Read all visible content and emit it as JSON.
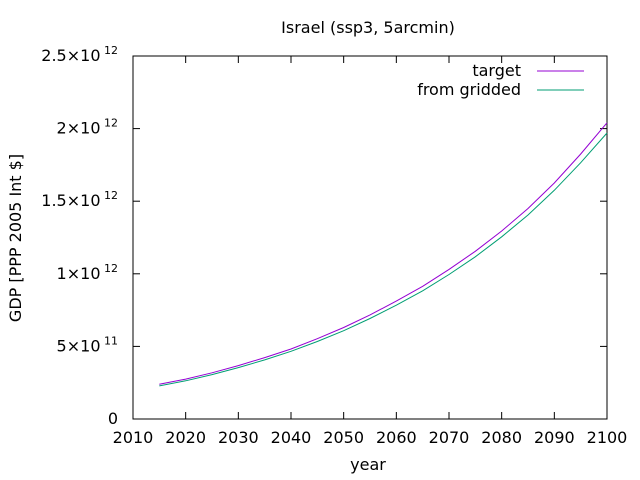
{
  "chart_data": {
    "type": "line",
    "title": "Israel (ssp3, 5arcmin)",
    "xlabel": "year",
    "ylabel": "GDP [PPP 2005 Int $]",
    "xlim": [
      2010,
      2100
    ],
    "ylim": [
      0,
      2500000000000
    ],
    "xticks": [
      2010,
      2020,
      2030,
      2040,
      2050,
      2060,
      2070,
      2080,
      2090,
      2100
    ],
    "yticks": [
      {
        "value": 0,
        "mantissa": "0",
        "exp": ""
      },
      {
        "value": 500000000000,
        "mantissa": "5×10",
        "exp": "11"
      },
      {
        "value": 1000000000000,
        "mantissa": "1×10",
        "exp": "12"
      },
      {
        "value": 1500000000000,
        "mantissa": "1.5×10",
        "exp": "12"
      },
      {
        "value": 2000000000000,
        "mantissa": "2×10",
        "exp": "12"
      },
      {
        "value": 2500000000000,
        "mantissa": "2.5×10",
        "exp": "12"
      }
    ],
    "grid": false,
    "legend_position": "top-right",
    "series": [
      {
        "name": "target",
        "color": "#9400d3",
        "x": [
          2015,
          2020,
          2025,
          2030,
          2035,
          2040,
          2045,
          2050,
          2055,
          2060,
          2065,
          2070,
          2075,
          2080,
          2085,
          2090,
          2095,
          2100
        ],
        "y": [
          240000000000,
          275000000000,
          318000000000,
          368000000000,
          423000000000,
          482000000000,
          553000000000,
          630000000000,
          717000000000,
          812000000000,
          914000000000,
          1030000000000,
          1155000000000,
          1295000000000,
          1450000000000,
          1625000000000,
          1825000000000,
          2040000000000
        ]
      },
      {
        "name": "from gridded",
        "color": "#009e73",
        "x": [
          2015,
          2020,
          2025,
          2030,
          2035,
          2040,
          2045,
          2050,
          2055,
          2060,
          2065,
          2070,
          2075,
          2080,
          2085,
          2090,
          2095,
          2100
        ],
        "y": [
          228000000000,
          263000000000,
          306000000000,
          354000000000,
          407000000000,
          466000000000,
          534000000000,
          608000000000,
          692000000000,
          784000000000,
          883000000000,
          995000000000,
          1117000000000,
          1255000000000,
          1405000000000,
          1575000000000,
          1765000000000,
          1970000000000
        ]
      }
    ]
  }
}
